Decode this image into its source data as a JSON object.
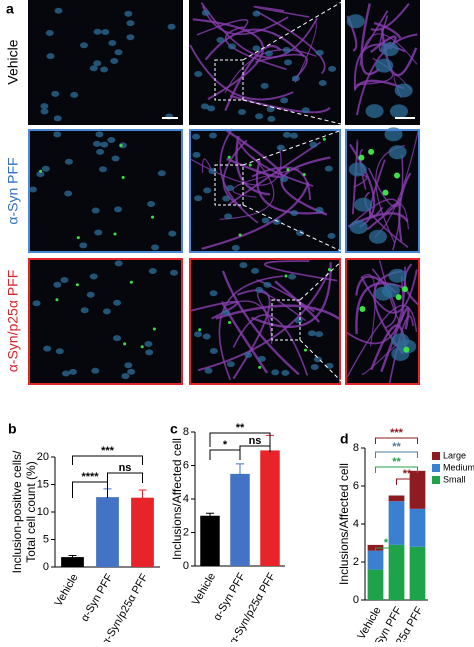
{
  "figure": {
    "panel_labels": [
      "a",
      "b",
      "c",
      "d"
    ],
    "row_labels": [
      {
        "text": "Vehicle",
        "color": "#000000"
      },
      {
        "text": "α-Syn PFF",
        "color": "#2f6fc4"
      },
      {
        "text": "α-Syn/p25α PFF",
        "color": "#d8262b"
      }
    ]
  },
  "chart_data": [
    {
      "type": "bar",
      "y_label": [
        "Inclusion-positive cells/",
        "Total cell count (%)"
      ],
      "categories": [
        "Vehicle",
        "α-Syn PFF",
        "α-Syn/p25α PFF"
      ],
      "values": [
        1.8,
        12.7,
        12.6
      ],
      "errors": [
        0.3,
        1.5,
        1.4
      ],
      "colors": [
        "#000000",
        "#4472c4",
        "#e8242b"
      ],
      "ylim": [
        0,
        20
      ],
      "yticks": [
        0,
        5,
        10,
        15,
        20
      ],
      "annotations": [
        {
          "text": "****"
        },
        {
          "text": "ns"
        },
        {
          "text": "***"
        }
      ]
    },
    {
      "type": "bar",
      "y_label": [
        "Inclusions/Affected cell"
      ],
      "categories": [
        "Vehicle",
        "α-Syn PFF",
        "α-Syn/p25α PFF"
      ],
      "values": [
        3.0,
        5.5,
        6.9
      ],
      "errors": [
        0.15,
        0.6,
        0.9
      ],
      "colors": [
        "#000000",
        "#4472c4",
        "#e8242b"
      ],
      "ylim": [
        0,
        8
      ],
      "yticks": [
        0,
        2,
        4,
        6,
        8
      ],
      "annotations": [
        {
          "text": "*"
        },
        {
          "text": "ns"
        },
        {
          "text": "**"
        }
      ]
    },
    {
      "type": "stacked_bar",
      "y_label": [
        "Inclusions/Affected cell"
      ],
      "categories": [
        "Vehicle",
        "αSyn PFF",
        "αSyn/p25α PFF"
      ],
      "series": [
        {
          "name": "Small",
          "color": "#1fa34a",
          "values": [
            1.6,
            2.9,
            2.8
          ]
        },
        {
          "name": "Medium",
          "color": "#3b7fd0",
          "values": [
            1.0,
            2.3,
            2.0
          ]
        },
        {
          "name": "Large",
          "color": "#8e1a22",
          "values": [
            0.3,
            0.3,
            2.0
          ]
        }
      ],
      "ylim": [
        0,
        8
      ],
      "yticks": [
        0,
        2,
        4,
        6,
        8
      ],
      "legend": "upper right",
      "annotations": [
        {
          "text": "*",
          "color": "#1fa34a"
        },
        {
          "text": "**",
          "color": "#8e1a22"
        },
        {
          "text": "**",
          "color": "#1fa34a"
        },
        {
          "text": "**",
          "color": "#4f7a9a"
        },
        {
          "text": "***",
          "color": "#8e1a22"
        }
      ]
    }
  ]
}
